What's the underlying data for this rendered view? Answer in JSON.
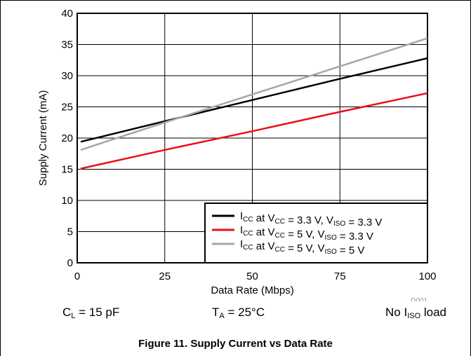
{
  "chart_data": {
    "type": "line",
    "xlabel": "Data Rate (Mbps)",
    "ylabel": "Supply Current (mA)",
    "xlim": [
      0,
      100
    ],
    "ylim": [
      0,
      40
    ],
    "xticks": [
      "0",
      "25",
      "50",
      "75",
      "100"
    ],
    "yticks": [
      "0",
      "5",
      "10",
      "15",
      "20",
      "25",
      "30",
      "35",
      "40"
    ],
    "grid": true,
    "legend_position": "bottom-right",
    "series": [
      {
        "name": "ICC at VCC = 3.3 V, VISO = 3.3 V",
        "legend": {
          "a": "I",
          "a_sub": "CC",
          "b": " at V",
          "b_sub": "CC",
          "c": " = 3.3 V, V",
          "c_sub": "ISO",
          "d": " = 3.3 V"
        },
        "color": "#000000",
        "x": [
          1,
          25,
          50,
          75,
          100
        ],
        "y": [
          19.4,
          22.7,
          26.1,
          29.5,
          32.8
        ]
      },
      {
        "name": "ICC at VCC = 5 V, VISO = 3.3 V",
        "legend": {
          "a": "I",
          "a_sub": "CC",
          "b": " at V",
          "b_sub": "CC",
          "c": " = 5 V, V",
          "c_sub": "ISO",
          "d": " = 3.3 V"
        },
        "color": "#e8111a",
        "x": [
          1,
          25,
          50,
          75,
          100
        ],
        "y": [
          15.1,
          18.1,
          21.1,
          24.2,
          27.2
        ]
      },
      {
        "name": "ICC at VCC = 5 V, VISO = 5 V",
        "legend": {
          "a": "I",
          "a_sub": "CC",
          "b": " at V",
          "b_sub": "CC",
          "c": " = 5 V, V",
          "c_sub": "ISO",
          "d": " = 5 V"
        },
        "color": "#a6a6a6",
        "x": [
          1,
          25,
          50,
          75,
          100
        ],
        "y": [
          18.1,
          22.5,
          27.0,
          31.5,
          36.0
        ]
      }
    ],
    "annotation": "D001"
  },
  "conditions": {
    "cl": {
      "a": "C",
      "sub": "L",
      "b": " = 15 pF"
    },
    "ta": {
      "a": "T",
      "sub": "A",
      "b": " = 25°C"
    },
    "load": {
      "a": "No I",
      "sub": "ISO",
      "b": " load"
    }
  },
  "caption": "Figure 11. Supply Current vs Data Rate"
}
